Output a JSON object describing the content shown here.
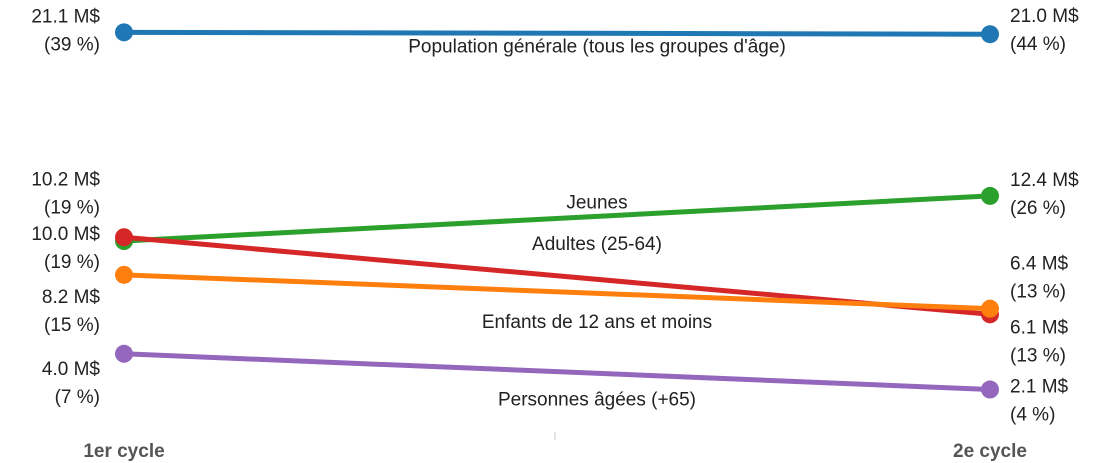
{
  "chart_data": {
    "type": "slope",
    "categories": [
      "1er cycle",
      "2e cycle"
    ],
    "ylim": [
      0,
      22
    ],
    "series": [
      {
        "name": "Population générale (tous les groupes d'âge)",
        "color": "#1f77b4",
        "values": [
          21.1,
          21.0
        ],
        "value_labels": [
          "21.1 M$",
          "21.0 M$"
        ],
        "share_labels": [
          "(39 %)",
          "(44 %)"
        ]
      },
      {
        "name": "Jeunes",
        "color": "#2ca02c",
        "values": [
          10.0,
          12.4
        ],
        "value_labels": [
          "10.0 M$",
          "12.4 M$"
        ],
        "share_labels": [
          "(19 %)",
          "(26 %)"
        ]
      },
      {
        "name": "Adultes (25-64)",
        "color": "#d62728",
        "values": [
          10.2,
          6.1
        ],
        "value_labels": [
          "10.2 M$",
          "6.1 M$"
        ],
        "share_labels": [
          "(19 %)",
          "(13 %)"
        ]
      },
      {
        "name": "Enfants de 12 ans et moins",
        "color": "#ff7f0e",
        "values": [
          8.2,
          6.4
        ],
        "value_labels": [
          "8.2 M$",
          "6.4 M$"
        ],
        "share_labels": [
          "(15 %)",
          "(13 %)"
        ]
      },
      {
        "name": "Personnes âgées (+65)",
        "color": "#9467bd",
        "values": [
          4.0,
          2.1
        ],
        "value_labels": [
          "4.0 M$",
          "2.1 M$"
        ],
        "share_labels": [
          "(7 %)",
          "(4 %)"
        ]
      }
    ]
  }
}
